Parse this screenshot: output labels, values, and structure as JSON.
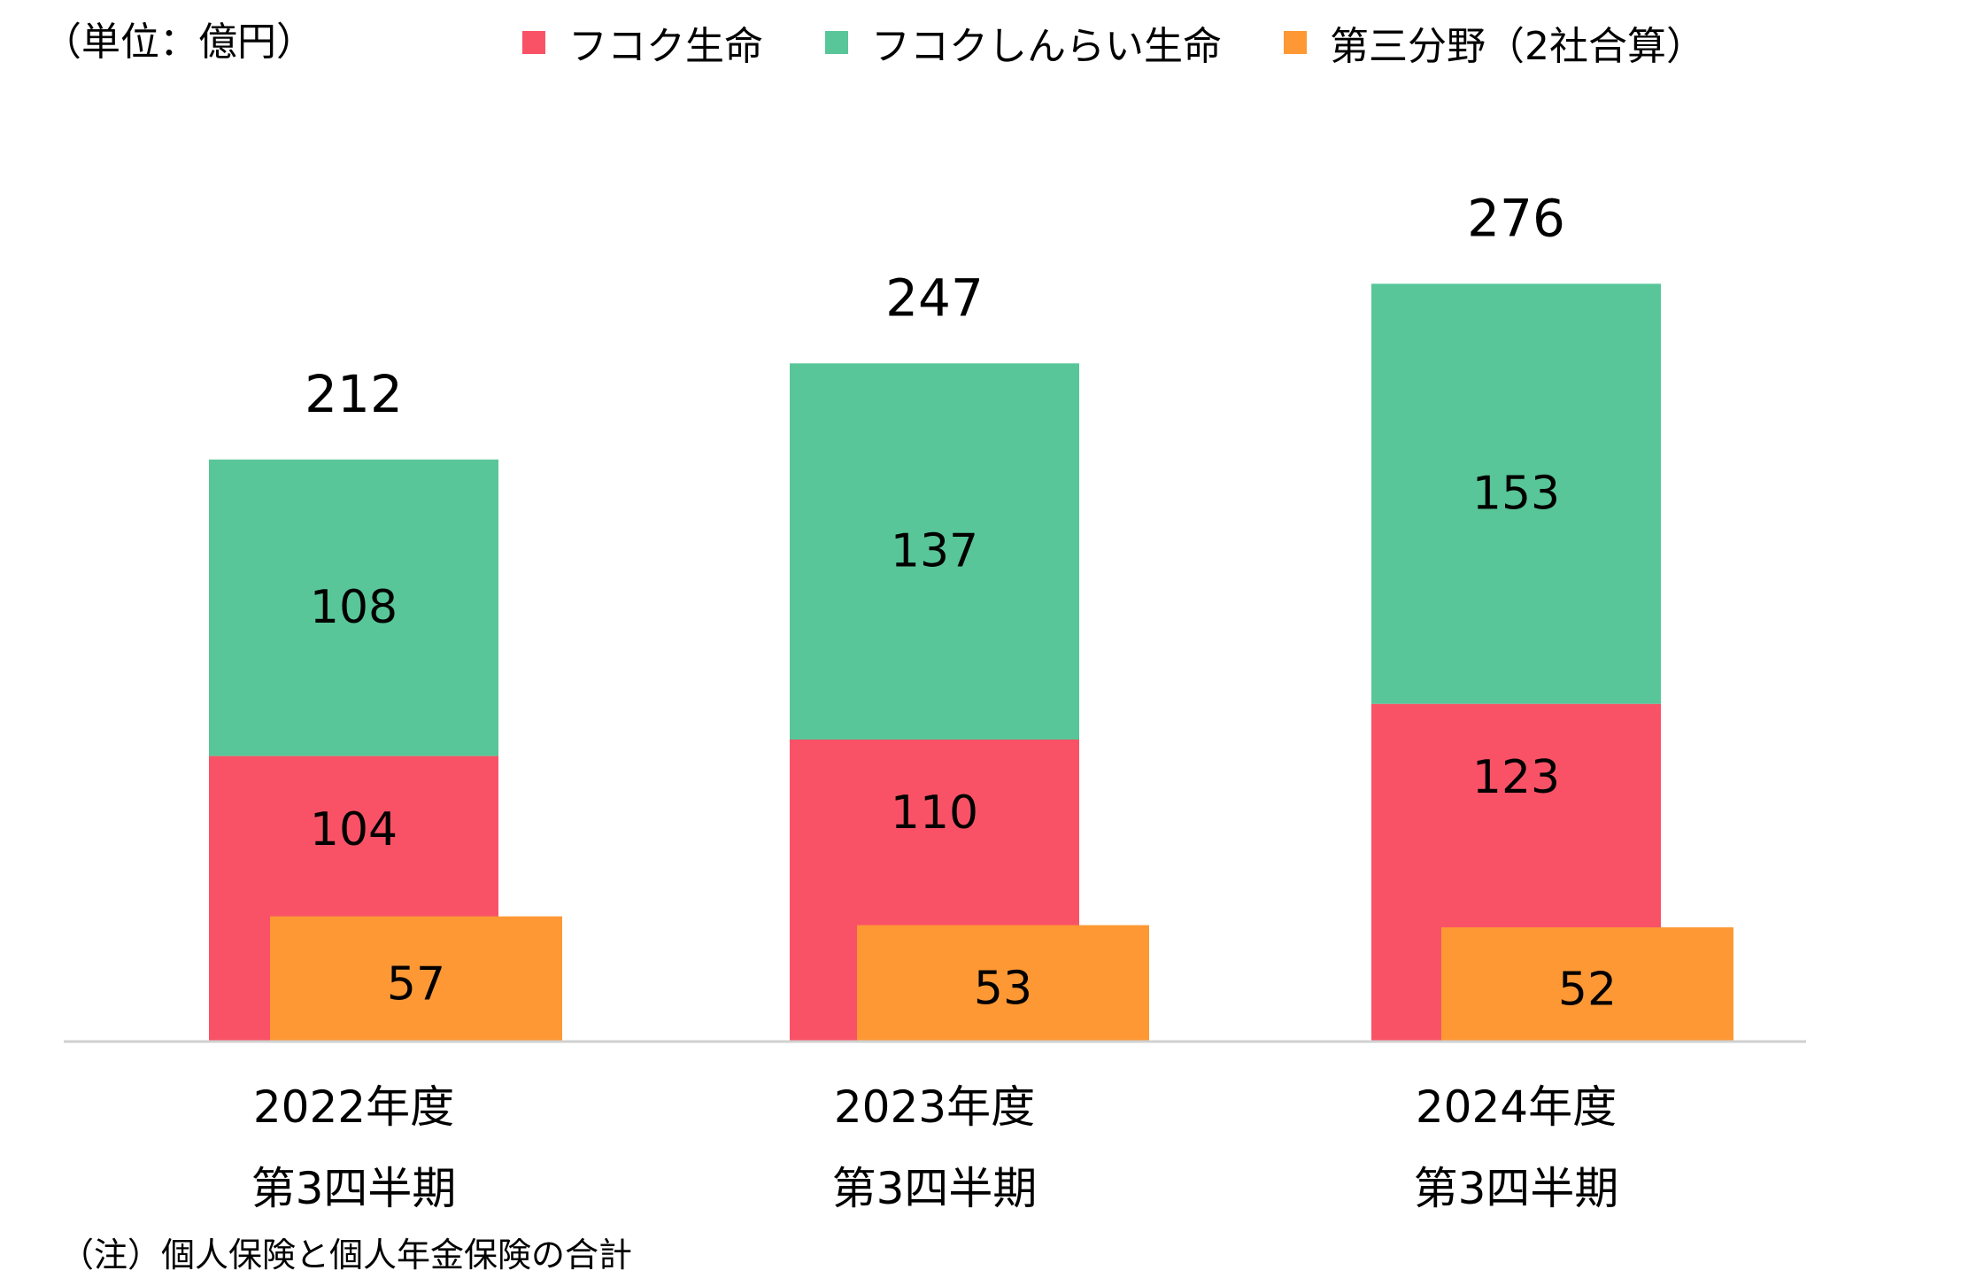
{
  "unit_label": "（単位：億円）",
  "footnote": "（注）個人保険と個人年金保険の合計",
  "chart_data": {
    "type": "bar",
    "categories": [
      [
        "2022年度",
        "第3四半期"
      ],
      [
        "2023年度",
        "第3四半期"
      ],
      [
        "2024年度",
        "第3四半期"
      ]
    ],
    "series": [
      {
        "name": "フコク生命",
        "values": [
          104,
          110,
          123
        ],
        "color": "#F95266",
        "role": "stacked"
      },
      {
        "name": "フコクしんらい生命",
        "values": [
          108,
          137,
          153
        ],
        "color": "#58C698",
        "role": "stacked"
      },
      {
        "name": "第三分野（2社合算）",
        "values": [
          57,
          53,
          52
        ],
        "color": "#FD9834",
        "role": "overlay"
      }
    ],
    "totals": [
      212,
      247,
      276
    ],
    "legend_position": "top",
    "grid": false,
    "ylim": [
      0,
      300
    ],
    "title": "",
    "xlabel": "",
    "ylabel": ""
  }
}
